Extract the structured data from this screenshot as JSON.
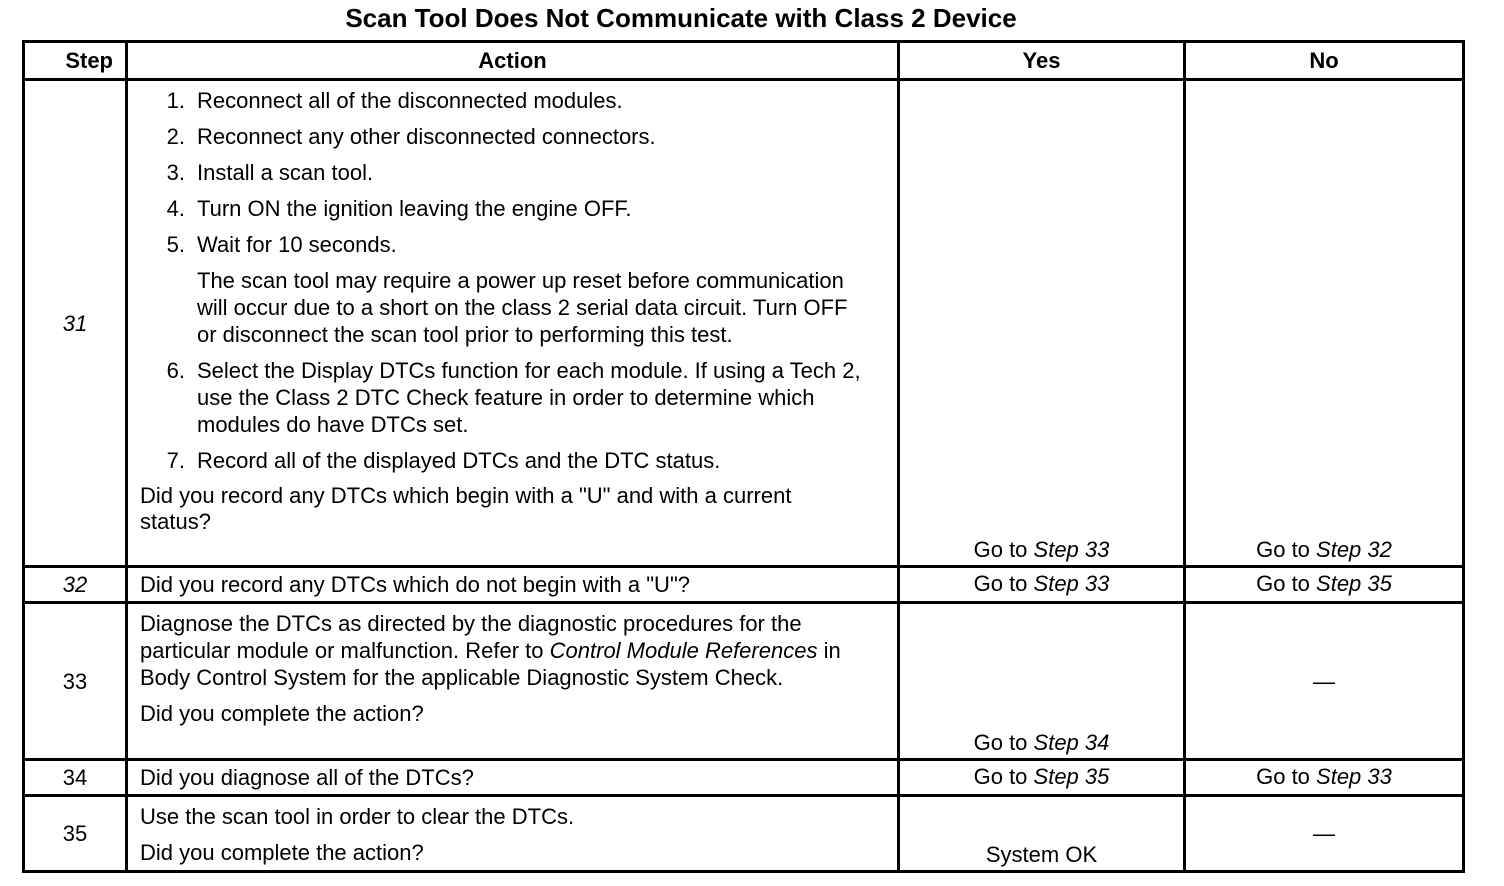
{
  "title": "Scan Tool Does Not Communicate with Class 2 Device",
  "headers": {
    "step": "Step",
    "action": "Action",
    "yes": "Yes",
    "no": "No"
  },
  "rows": {
    "r31": {
      "step": "31",
      "items": [
        {
          "num": "1.",
          "text": "Reconnect all of the disconnected modules."
        },
        {
          "num": "2.",
          "text": "Reconnect any other disconnected connectors."
        },
        {
          "num": "3.",
          "text": "Install a scan tool."
        },
        {
          "num": "4.",
          "text": "Turn ON the ignition leaving the engine OFF."
        },
        {
          "num": "5.",
          "text": "Wait for 10 seconds."
        },
        {
          "num": "6.",
          "text": "Select the Display DTCs function for each module. If using a Tech 2, use the Class 2 DTC Check feature in order to determine which modules do have DTCs set."
        },
        {
          "num": "7.",
          "text": "Record all of the displayed DTCs and the DTC status."
        }
      ],
      "note": "The scan tool may require a power up reset before communication will occur due to a short on the class 2 serial data circuit. Turn OFF or disconnect the scan tool prior to performing this test.",
      "question": "Did you record any DTCs which begin with a \"U\" and with a current status?",
      "yes": {
        "prefix": "Go to ",
        "link": "Step 33"
      },
      "no": {
        "prefix": "Go to ",
        "link": "Step 32"
      }
    },
    "r32": {
      "step": "32",
      "question": "Did you record any DTCs which do not begin with a \"U\"?",
      "yes": {
        "prefix": "Go to ",
        "link": "Step 33"
      },
      "no": {
        "prefix": "Go to ",
        "link": "Step 35"
      }
    },
    "r33": {
      "step": "33",
      "action_a": "Diagnose the DTCs as directed by the diagnostic procedures for the particular module or malfunction. Refer to ",
      "action_ref": "Control Module References",
      "action_b": " in Body Control System for the applicable Diagnostic System Check.",
      "question": "Did you complete the action?",
      "yes": {
        "prefix": "Go to ",
        "link": "Step 34"
      },
      "no": "—"
    },
    "r34": {
      "step": "34",
      "question": "Did you diagnose all of the DTCs?",
      "yes": {
        "prefix": "Go to ",
        "link": "Step 35"
      },
      "no": {
        "prefix": "Go to ",
        "link": "Step 33"
      }
    },
    "r35": {
      "step": "35",
      "action": "Use the scan tool in order to clear the DTCs.",
      "question": "Did you complete the action?",
      "yes": "System OK",
      "no": "—"
    }
  }
}
